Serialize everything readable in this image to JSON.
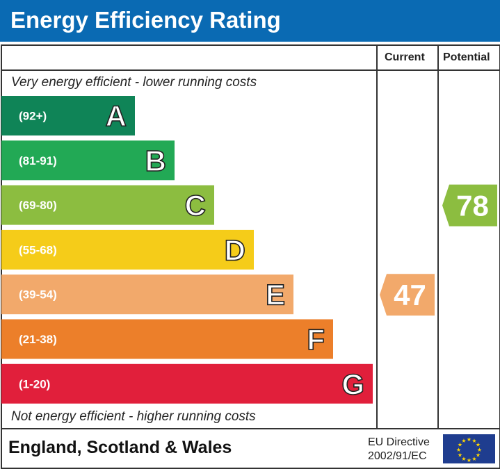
{
  "header": {
    "title": "Energy Efficiency Rating"
  },
  "columns": {
    "current": "Current",
    "potential": "Potential"
  },
  "notes": {
    "top": "Very energy efficient - lower running costs",
    "bottom": "Not energy efficient - higher running costs"
  },
  "footer": {
    "region": "England, Scotland & Wales",
    "directive_line1": "EU Directive",
    "directive_line2": "2002/91/EC"
  },
  "chart_data": {
    "type": "bar",
    "categories": [
      "A",
      "B",
      "C",
      "D",
      "E",
      "F",
      "G"
    ],
    "ranges": [
      "(92+)",
      "(81-91)",
      "(69-80)",
      "(55-68)",
      "(39-54)",
      "(21-38)",
      "(1-20)"
    ],
    "colors": [
      "#0f8457",
      "#22a955",
      "#8cbd40",
      "#f5cc19",
      "#f2a96b",
      "#ec7f2a",
      "#e11f3b"
    ],
    "current": {
      "value": 47,
      "band": "E",
      "color": "#f2a96b"
    },
    "potential": {
      "value": 78,
      "band": "C",
      "color": "#8cbd40"
    }
  }
}
